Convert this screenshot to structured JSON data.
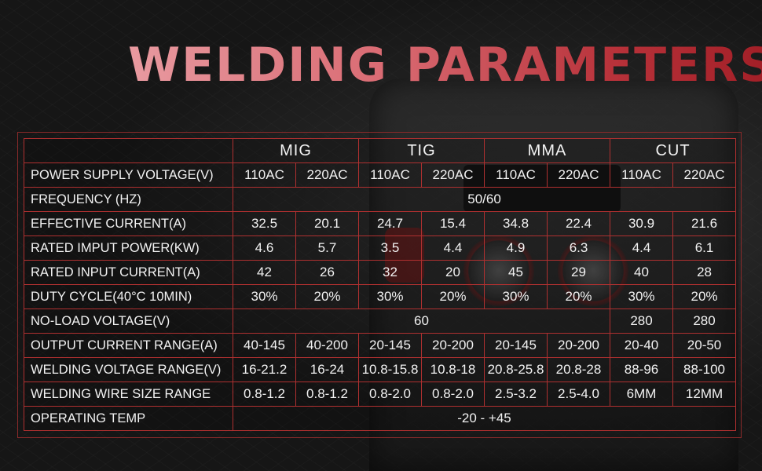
{
  "title": "WELDING PARAMETERS",
  "groups": [
    "MIG",
    "TIG",
    "MMA",
    "CUT"
  ],
  "rows": {
    "power_supply_voltage": {
      "label": "POWER SUPPLY VOLTAGE(V)",
      "values": [
        "110AC",
        "220AC",
        "110AC",
        "220AC",
        "110AC",
        "220AC",
        "110AC",
        "220AC"
      ]
    },
    "frequency": {
      "label": "FREQUENCY (HZ)",
      "value": "50/60"
    },
    "effective_current": {
      "label": "EFFECTIVE CURRENT(A)",
      "values": [
        "32.5",
        "20.1",
        "24.7",
        "15.4",
        "34.8",
        "22.4",
        "30.9",
        "21.6"
      ]
    },
    "rated_imput_power": {
      "label": "RATED IMPUT POWER(KW)",
      "values": [
        "4.6",
        "5.7",
        "3.5",
        "4.4",
        "4.9",
        "6.3",
        "4.4",
        "6.1"
      ]
    },
    "rated_input_current": {
      "label": "RATED INPUT CURRENT(A)",
      "values": [
        "42",
        "26",
        "32",
        "20",
        "45",
        "29",
        "40",
        "28"
      ]
    },
    "duty_cycle": {
      "label": "DUTY CYCLE(40°C 10MIN)",
      "values": [
        "30%",
        "20%",
        "30%",
        "20%",
        "30%",
        "20%",
        "30%",
        "20%"
      ]
    },
    "no_load_voltage": {
      "label": "NO-LOAD VOLTAGE(V)",
      "shared": "60",
      "cut_values": [
        "280",
        "280"
      ]
    },
    "output_current_range": {
      "label": "OUTPUT CURRENT RANGE(A)",
      "values": [
        "40-145",
        "40-200",
        "20-145",
        "20-200",
        "20-145",
        "20-200",
        "20-40",
        "20-50"
      ]
    },
    "welding_voltage_range": {
      "label": "WELDING VOLTAGE RANGE(V)",
      "values": [
        "16-21.2",
        "16-24",
        "10.8-15.8",
        "10.8-18",
        "20.8-25.8",
        "20.8-28",
        "88-96",
        "88-100"
      ]
    },
    "welding_wire_size_range": {
      "label": "WELDING WIRE SIZE RANGE",
      "values": [
        "0.8-1.2",
        "0.8-1.2",
        "0.8-2.0",
        "0.8-2.0",
        "2.5-3.2",
        "2.5-4.0",
        "6MM",
        "12MM"
      ]
    },
    "operating_temp": {
      "label": "OPERATING TEMP",
      "value": "-20 - +45"
    }
  }
}
